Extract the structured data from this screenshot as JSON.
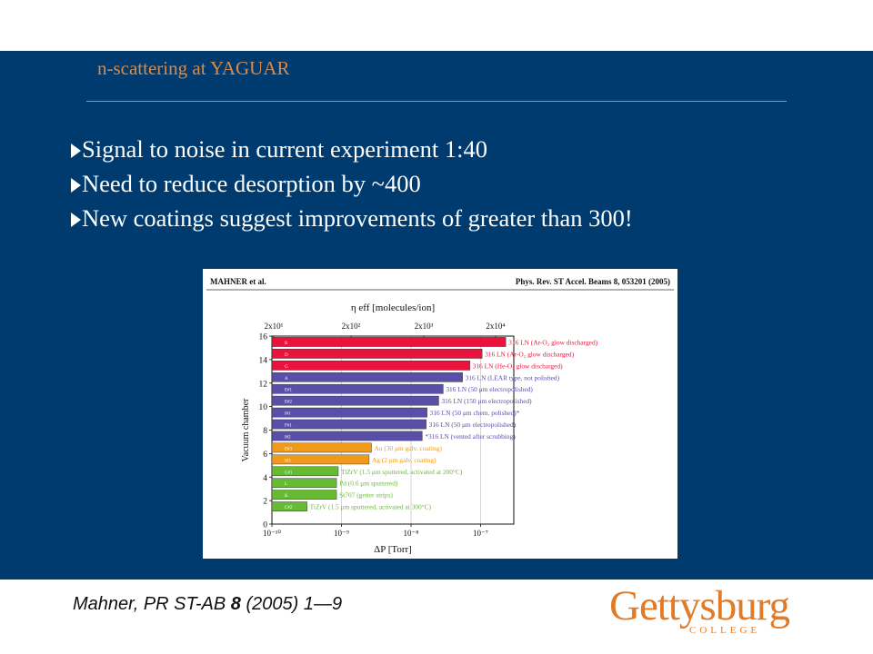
{
  "slide": {
    "title": "n-scattering at YAGUAR",
    "bullets": [
      "Signal to noise in current experiment 1:40",
      "Need to reduce desorption by ~400",
      "New coatings suggest improvements of greater than 300!"
    ],
    "citation": {
      "prefix": "Mahner, PR ST-AB ",
      "volume": "8",
      "suffix": " (2005) 1—9"
    },
    "logo": {
      "word": "Gettysburg",
      "sub": "COLLEGE"
    }
  },
  "chart_data": {
    "type": "bar",
    "orientation": "horizontal",
    "header_left": "MAHNER et al.",
    "header_right": "Phys. Rev. ST Accel. Beams 8, 053201 (2005)",
    "top_axis_label": "η eff [molecules/ion]",
    "top_axis_ticks": [
      "2x10¹",
      "2x10²",
      "2x10³",
      "2x10⁴"
    ],
    "xlabel": "ΔP [Torr]",
    "x_ticks": [
      "10⁻¹⁰",
      "10⁻⁹",
      "10⁻⁸",
      "10⁻⁷"
    ],
    "x_scale": "log",
    "xlim": [
      "1e-10",
      "3e-7"
    ],
    "ylabel": "Vacuum chamber",
    "y_ticks": [
      "0",
      "2",
      "4",
      "6",
      "8",
      "10",
      "12",
      "14",
      "16"
    ],
    "ylim": [
      0,
      16
    ],
    "colors": {
      "red": "#e8143c",
      "blue": "#5a4fa8",
      "orange": "#f09a1a",
      "green": "#66bb33"
    },
    "bars": [
      {
        "code": "B",
        "color": "red",
        "value": 2.3e-07,
        "label": "316 LN (Ar-O₂ glow discharged)"
      },
      {
        "code": "D",
        "color": "red",
        "value": 1.05e-07,
        "label": "316 LN (Ar-O₂ glow discharged)"
      },
      {
        "code": "G",
        "color": "red",
        "value": 7e-08,
        "label": "316 LN (He-O₂ glow discharged)"
      },
      {
        "code": "A",
        "color": "blue",
        "value": 5.5e-08,
        "label": "316 LN (LEAR type, not polished)"
      },
      {
        "code": "E#1",
        "color": "blue",
        "value": 2.9e-08,
        "label": "316 LN (50 μm electropolished)"
      },
      {
        "code": "E#2",
        "color": "blue",
        "value": 2.5e-08,
        "label": "316 LN (150 μm electropolished)"
      },
      {
        "code": "I#1",
        "color": "blue",
        "value": 1.7e-08,
        "label": "316 LN (50 μm chem. polished)*"
      },
      {
        "code": "F#1",
        "color": "blue",
        "value": 1.65e-08,
        "label": "316 LN (50 μm electropolished)"
      },
      {
        "code": "I#2",
        "color": "blue",
        "value": 1.45e-08,
        "label": "*316 LN (vented after scrubbing)"
      },
      {
        "code": "E#3",
        "color": "orange",
        "value": 2.7e-09,
        "label": "Au (30 μm galv. coating)"
      },
      {
        "code": "I#3",
        "color": "orange",
        "value": 2.5e-09,
        "label": "Ag (2 μm galv. coating)"
      },
      {
        "code": "C#1",
        "color": "green",
        "value": 9e-10,
        "label": "TiZrV (1.5 μm sputtered, activated at 200°C)"
      },
      {
        "code": "L",
        "color": "green",
        "value": 8.5e-10,
        "label": "Pd (0.6 μm sputtered)"
      },
      {
        "code": "K",
        "color": "green",
        "value": 8.5e-10,
        "label": "St707 (getter strips)"
      },
      {
        "code": "C#2",
        "color": "green",
        "value": 3.2e-10,
        "label": "TiZrV (1.5 μm sputtered, activated at 300°C)"
      }
    ]
  }
}
